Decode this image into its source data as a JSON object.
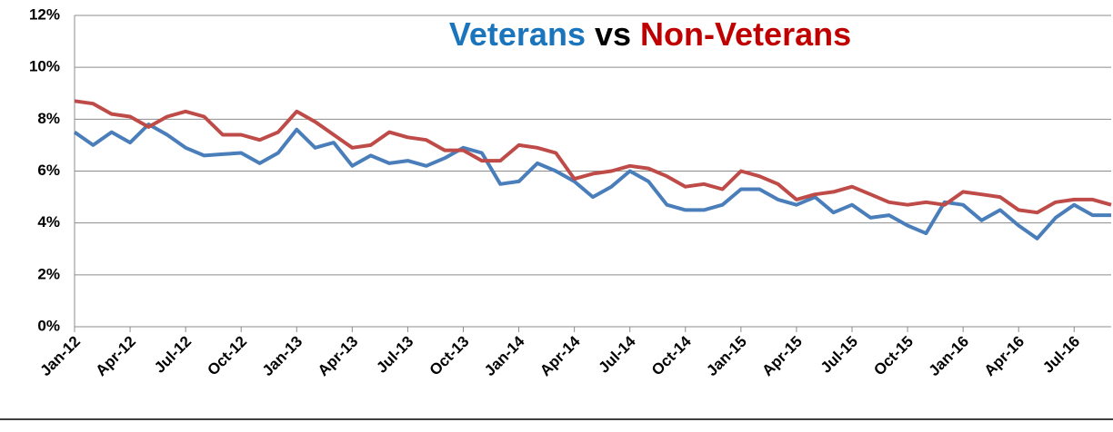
{
  "chart_data": {
    "type": "line",
    "title_connector": "vs",
    "categories": [
      "Jan-12",
      null,
      null,
      "Apr-12",
      null,
      null,
      "Jul-12",
      null,
      null,
      "Oct-12",
      null,
      null,
      "Jan-13",
      null,
      null,
      "Apr-13",
      null,
      null,
      "Jul-13",
      null,
      null,
      "Oct-13",
      null,
      null,
      "Jan-14",
      null,
      null,
      "Apr-14",
      null,
      null,
      "Jul-14",
      null,
      null,
      "Oct-14",
      null,
      null,
      "Jan-15",
      null,
      null,
      "Apr-15",
      null,
      null,
      "Jul-15",
      null,
      null,
      "Oct-15",
      null,
      null,
      "Jan-16",
      null,
      null,
      "Apr-16",
      null,
      null,
      "Jul-16",
      null,
      null
    ],
    "series": [
      {
        "name": "Veterans",
        "color": "#4a7ebb",
        "values": [
          7.5,
          7.0,
          7.5,
          7.1,
          7.8,
          7.4,
          6.9,
          6.6,
          6.65,
          6.7,
          6.3,
          6.7,
          7.6,
          6.9,
          7.1,
          6.2,
          6.6,
          6.3,
          6.4,
          6.2,
          6.5,
          6.9,
          6.7,
          5.5,
          5.6,
          6.3,
          6.0,
          5.6,
          5.0,
          5.4,
          6.0,
          5.6,
          4.7,
          4.5,
          4.5,
          4.7,
          5.3,
          5.3,
          4.9,
          4.7,
          5.0,
          4.4,
          4.7,
          4.2,
          4.3,
          3.9,
          3.6,
          4.8,
          4.7,
          4.1,
          4.5,
          3.9,
          3.4,
          4.2,
          4.7,
          4.3,
          4.3
        ]
      },
      {
        "name": "Non-Veterans",
        "color": "#be4b48",
        "values": [
          8.7,
          8.6,
          8.2,
          8.1,
          7.7,
          8.1,
          8.3,
          8.1,
          7.4,
          7.4,
          7.2,
          7.5,
          8.3,
          7.9,
          7.4,
          6.9,
          7.0,
          7.5,
          7.3,
          7.2,
          6.8,
          6.8,
          6.4,
          6.4,
          7.0,
          6.9,
          6.7,
          5.7,
          5.9,
          6.0,
          6.2,
          6.1,
          5.8,
          5.4,
          5.5,
          5.3,
          6.0,
          5.8,
          5.5,
          4.9,
          5.1,
          5.2,
          5.4,
          5.1,
          4.8,
          4.7,
          4.8,
          4.7,
          5.2,
          5.1,
          5.0,
          4.5,
          4.4,
          4.8,
          4.9,
          4.9,
          4.7
        ]
      }
    ],
    "title_colors": {
      "connector": "#000000",
      "first": "#1a75bc",
      "second": "#c00000"
    },
    "ylim": [
      0,
      12
    ],
    "yticks": [
      {
        "value": 0,
        "label": "0%"
      },
      {
        "value": 2,
        "label": "2%"
      },
      {
        "value": 4,
        "label": "4%"
      },
      {
        "value": 6,
        "label": "6%"
      },
      {
        "value": 8,
        "label": "8%"
      },
      {
        "value": 10,
        "label": "10%"
      },
      {
        "value": 12,
        "label": "12%"
      }
    ],
    "grid": true
  }
}
